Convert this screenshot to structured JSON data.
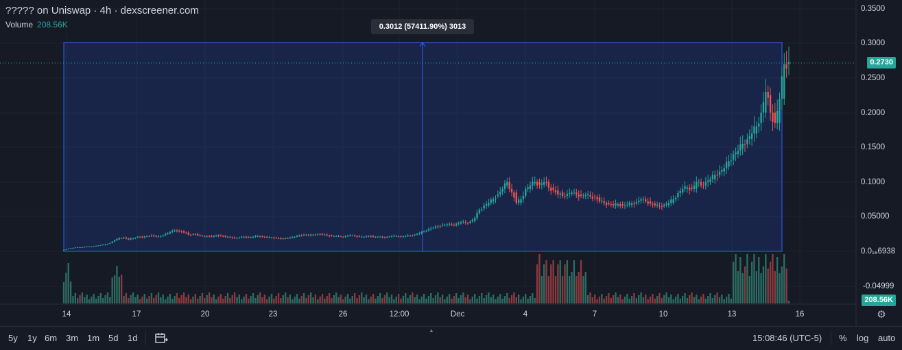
{
  "header": {
    "title": "????? on Uniswap · 4h · dexscreener.com",
    "volume_label": "Volume",
    "volume_value": "208.56K"
  },
  "measure_tooltip": "0.3012 (57411.90%) 3013",
  "price_axis": {
    "ticks": [
      "0.3500",
      "0.3000",
      "0.2500",
      "0.2000",
      "0.1500",
      "0.1000",
      "0.05000",
      "0.0₁₆6938",
      "-0.04999"
    ],
    "current_price": "0.2730",
    "volume_tag": "208.56K"
  },
  "time_axis": {
    "ticks": [
      "14",
      "17",
      "20",
      "23",
      "26",
      "12:00",
      "Dec",
      "4",
      "7",
      "10",
      "13",
      "16"
    ]
  },
  "toolbar": {
    "timeframes": [
      "5y",
      "1y",
      "6m",
      "3m",
      "1m",
      "5d",
      "1d"
    ],
    "clock": "15:08:46 (UTC-5)",
    "percent": "%",
    "log": "log",
    "auto": "auto"
  },
  "icons": {
    "calendar": "calendar-range-icon",
    "settings": "gear-icon"
  },
  "colors": {
    "up": "#26a69a",
    "down": "#ef5350",
    "up_volume": "#2b6d62",
    "down_volume": "#8c3a3e",
    "measure": "#2962ff",
    "background": "#161a25"
  },
  "chart_data": {
    "type": "candlestick",
    "interval": "4h",
    "measure": {
      "start_price": 0.0,
      "end_price": 0.3012,
      "change_pct": 57411.9,
      "bars": 3013
    },
    "price_series": [
      [
        0.002,
        0.002
      ],
      [
        0.004,
        0.0035
      ],
      [
        0.005,
        0.0045
      ],
      [
        0.006,
        0.0055
      ],
      [
        0.006,
        0.0058
      ],
      [
        0.007,
        0.0065
      ],
      [
        0.007,
        0.0068
      ],
      [
        0.008,
        0.0075
      ],
      [
        0.009,
        0.0085
      ],
      [
        0.01,
        0.009
      ],
      [
        0.012,
        0.011
      ],
      [
        0.016,
        0.014
      ],
      [
        0.019,
        0.017
      ],
      [
        0.02,
        0.019
      ],
      [
        0.017,
        0.0185
      ],
      [
        0.019,
        0.018
      ],
      [
        0.021,
        0.02
      ],
      [
        0.02,
        0.021
      ],
      [
        0.022,
        0.021
      ],
      [
        0.023,
        0.022
      ],
      [
        0.021,
        0.0225
      ],
      [
        0.022,
        0.021
      ],
      [
        0.025,
        0.023
      ],
      [
        0.028,
        0.026
      ],
      [
        0.03,
        0.029
      ],
      [
        0.029,
        0.03
      ],
      [
        0.027,
        0.029
      ],
      [
        0.024,
        0.027
      ],
      [
        0.025,
        0.024
      ],
      [
        0.023,
        0.025
      ],
      [
        0.022,
        0.023
      ],
      [
        0.022,
        0.021
      ],
      [
        0.021,
        0.022
      ],
      [
        0.023,
        0.022
      ],
      [
        0.022,
        0.023
      ],
      [
        0.021,
        0.0225
      ],
      [
        0.02,
        0.021
      ],
      [
        0.019,
        0.02
      ],
      [
        0.02,
        0.019
      ],
      [
        0.021,
        0.02
      ],
      [
        0.02,
        0.021
      ],
      [
        0.021,
        0.02
      ],
      [
        0.022,
        0.021
      ],
      [
        0.021,
        0.022
      ],
      [
        0.02,
        0.021
      ],
      [
        0.02,
        0.02
      ],
      [
        0.019,
        0.02
      ],
      [
        0.018,
        0.019
      ],
      [
        0.019,
        0.018
      ],
      [
        0.02,
        0.019
      ],
      [
        0.021,
        0.02
      ],
      [
        0.023,
        0.022
      ],
      [
        0.024,
        0.023
      ],
      [
        0.023,
        0.024
      ],
      [
        0.024,
        0.023
      ],
      [
        0.025,
        0.024
      ],
      [
        0.024,
        0.025
      ],
      [
        0.023,
        0.024
      ],
      [
        0.022,
        0.023
      ],
      [
        0.022,
        0.022
      ],
      [
        0.021,
        0.022
      ],
      [
        0.022,
        0.021
      ],
      [
        0.023,
        0.022
      ],
      [
        0.022,
        0.023
      ],
      [
        0.021,
        0.022
      ],
      [
        0.021,
        0.021
      ],
      [
        0.022,
        0.021
      ],
      [
        0.021,
        0.022
      ],
      [
        0.021,
        0.021
      ],
      [
        0.02,
        0.021
      ],
      [
        0.021,
        0.02
      ],
      [
        0.022,
        0.021
      ],
      [
        0.022,
        0.022
      ],
      [
        0.021,
        0.022
      ],
      [
        0.022,
        0.021
      ],
      [
        0.023,
        0.022
      ],
      [
        0.024,
        0.023
      ],
      [
        0.026,
        0.025
      ],
      [
        0.029,
        0.028
      ],
      [
        0.032,
        0.03
      ],
      [
        0.034,
        0.033
      ],
      [
        0.036,
        0.035
      ],
      [
        0.038,
        0.037
      ],
      [
        0.039,
        0.038
      ],
      [
        0.038,
        0.039
      ],
      [
        0.04,
        0.038
      ],
      [
        0.042,
        0.04
      ],
      [
        0.041,
        0.042
      ],
      [
        0.043,
        0.041
      ],
      [
        0.048,
        0.044
      ],
      [
        0.06,
        0.055
      ],
      [
        0.066,
        0.062
      ],
      [
        0.07,
        0.066
      ],
      [
        0.075,
        0.072
      ],
      [
        0.082,
        0.08
      ],
      [
        0.09,
        0.086
      ],
      [
        0.1,
        0.095
      ],
      [
        0.085,
        0.09
      ],
      [
        0.07,
        0.085
      ],
      [
        0.075,
        0.07
      ],
      [
        0.09,
        0.08
      ],
      [
        0.095,
        0.09
      ],
      [
        0.1,
        0.098
      ],
      [
        0.096,
        0.1
      ],
      [
        0.1,
        0.096
      ],
      [
        0.092,
        0.1
      ],
      [
        0.088,
        0.092
      ],
      [
        0.082,
        0.088
      ],
      [
        0.08,
        0.085
      ],
      [
        0.083,
        0.08
      ],
      [
        0.085,
        0.083
      ],
      [
        0.082,
        0.085
      ],
      [
        0.08,
        0.082
      ],
      [
        0.081,
        0.08
      ],
      [
        0.079,
        0.081
      ],
      [
        0.078,
        0.079
      ],
      [
        0.072,
        0.078
      ],
      [
        0.07,
        0.072
      ],
      [
        0.068,
        0.07
      ],
      [
        0.066,
        0.068
      ],
      [
        0.068,
        0.066
      ],
      [
        0.066,
        0.068
      ],
      [
        0.067,
        0.066
      ],
      [
        0.069,
        0.067
      ],
      [
        0.071,
        0.069
      ],
      [
        0.075,
        0.073
      ],
      [
        0.072,
        0.075
      ],
      [
        0.069,
        0.072
      ],
      [
        0.066,
        0.069
      ],
      [
        0.065,
        0.066
      ],
      [
        0.067,
        0.065
      ],
      [
        0.07,
        0.067
      ],
      [
        0.075,
        0.07
      ],
      [
        0.084,
        0.078
      ],
      [
        0.09,
        0.085
      ],
      [
        0.092,
        0.09
      ],
      [
        0.09,
        0.092
      ],
      [
        0.1,
        0.09
      ],
      [
        0.095,
        0.1
      ],
      [
        0.1,
        0.095
      ],
      [
        0.104,
        0.1
      ],
      [
        0.11,
        0.104
      ],
      [
        0.115,
        0.11
      ],
      [
        0.12,
        0.115
      ],
      [
        0.13,
        0.122
      ],
      [
        0.14,
        0.132
      ],
      [
        0.145,
        0.14
      ],
      [
        0.155,
        0.148
      ],
      [
        0.162,
        0.155
      ],
      [
        0.17,
        0.162
      ],
      [
        0.18,
        0.17
      ],
      [
        0.2,
        0.185
      ],
      [
        0.23,
        0.2
      ],
      [
        0.2,
        0.225
      ],
      [
        0.185,
        0.2
      ],
      [
        0.22,
        0.185
      ],
      [
        0.27,
        0.22
      ],
      [
        0.273,
        0.27
      ]
    ],
    "volume_note": "volume bars per candle, last value 208.56K"
  }
}
